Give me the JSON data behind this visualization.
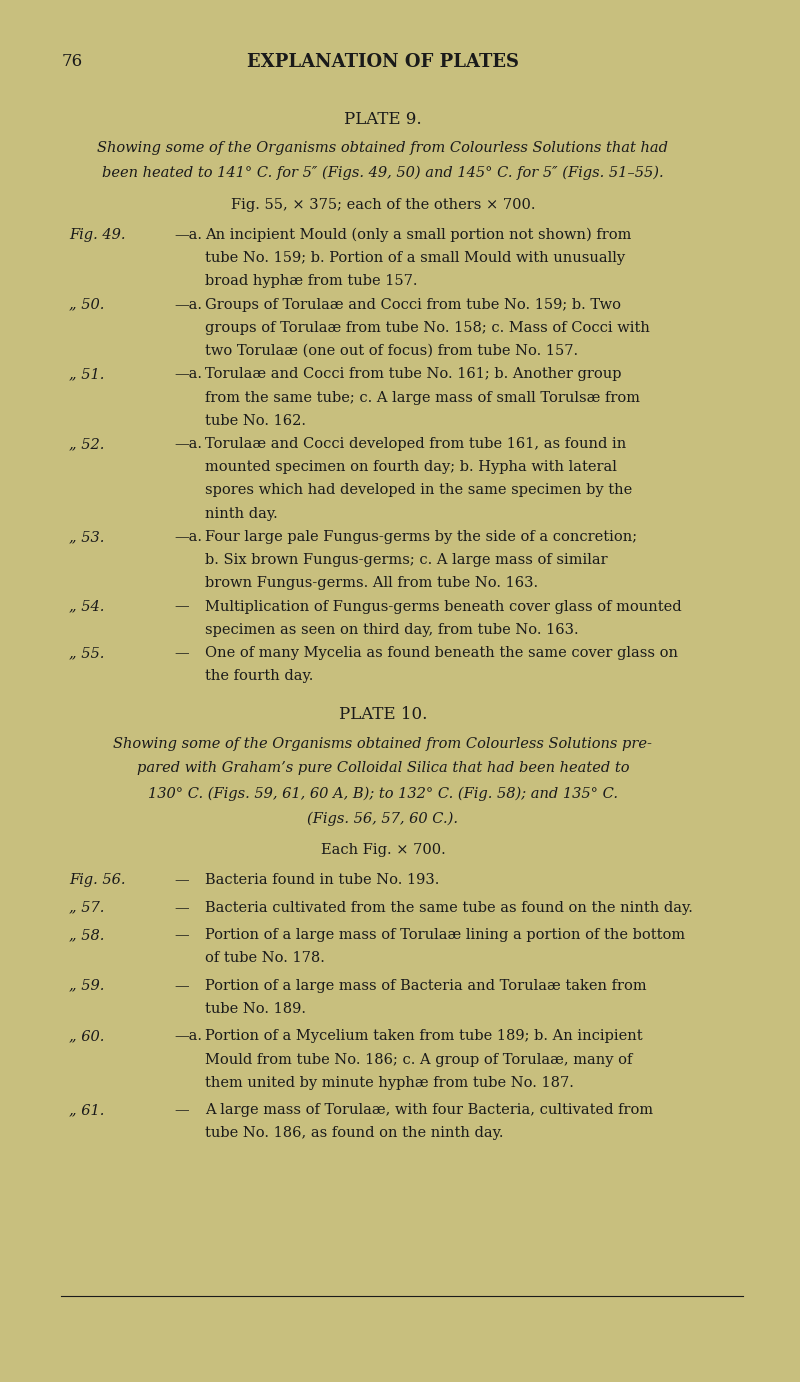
{
  "bg_color": "#c8bf7e",
  "text_color": "#1a1a1a",
  "page_number": "76",
  "header": "EXPLANATION OF PLATES",
  "plate9_title": "PLATE 9.",
  "plate9_italic_lines": [
    "Showing some of the Organisms obtained from Colourless Solutions that had",
    "been heated to 141° C. for 5″ (Figs. 49, 50) and 145° C. for 5″ (Figs. 51–55)."
  ],
  "plate9_scale": "Fig. 55, × 375; each of the others × 700.",
  "plate9_entries": [
    {
      "label": "Fig. 49.",
      "prefix": "—a.",
      "text_lines": [
        "An incipient Mould (only a small portion not shown) from",
        "tube No. 159; b. Portion of a small Mould with unusually",
        "broad hyphæ from tube 157."
      ]
    },
    {
      "label": "„ 50.",
      "prefix": "—a.",
      "text_lines": [
        "Groups of Torulaæ and Cocci from tube No. 159; b. Two",
        "groups of Torulaæ from tube No. 158; c. Mass of Cocci with",
        "two Torulaæ (one out of focus) from tube No. 157."
      ]
    },
    {
      "label": "„ 51.",
      "prefix": "—a.",
      "text_lines": [
        "Torulaæ and Cocci from tube No. 161; b. Another group",
        "from the same tube; c. A large mass of small Torulsæ from",
        "tube No. 162."
      ]
    },
    {
      "label": "„ 52.",
      "prefix": "—a.",
      "text_lines": [
        "Torulaæ and Cocci developed from tube 161, as found in",
        "mounted specimen on fourth day; b. Hypha with lateral",
        "spores which had developed in the same specimen by the",
        "ninth day."
      ]
    },
    {
      "label": "„ 53.",
      "prefix": "—a.",
      "text_lines": [
        "Four large pale Fungus-germs by the side of a concretion;",
        "b. Six brown Fungus-germs; c. A large mass of similar",
        "brown Fungus-germs. All from tube No. 163."
      ]
    },
    {
      "label": "„ 54.",
      "prefix": "—",
      "text_lines": [
        "Multiplication of Fungus-germs beneath cover glass of mounted",
        "specimen as seen on third day, from tube No. 163."
      ]
    },
    {
      "label": "„ 55.",
      "prefix": "—",
      "text_lines": [
        "One of many Mycelia as found beneath the same cover glass on",
        "the fourth day."
      ]
    }
  ],
  "plate10_title": "PLATE 10.",
  "plate10_italic_lines": [
    "Showing some of the Organisms obtained from Colourless Solutions pre-",
    "pared with Graham’s pure Colloidal Silica that had been heated to",
    "130° C. (Figs. 59, 61, 60 A, B); to 132° C. (Fig. 58); and 135° C.",
    "(Figs. 56, 57, 60 C.)."
  ],
  "plate10_scale": "Each Fig. × 700.",
  "plate10_entries": [
    {
      "label": "Fig. 56.",
      "prefix": "—",
      "text_lines": [
        "Bacteria found in tube No. 193."
      ]
    },
    {
      "label": "„ 57.",
      "prefix": "—",
      "text_lines": [
        "Bacteria cultivated from the same tube as found on the ninth day."
      ]
    },
    {
      "label": "„ 58.",
      "prefix": "—",
      "text_lines": [
        "Portion of a large mass of Torulaæ lining a portion of the bottom",
        "of tube No. 178."
      ]
    },
    {
      "label": "„ 59.",
      "prefix": "—",
      "text_lines": [
        "Portion of a large mass of Bacteria and Torulaæ taken from",
        "tube No. 189."
      ]
    },
    {
      "label": "„ 60.",
      "prefix": "—a.",
      "text_lines": [
        "Portion of a Mycelium taken from tube 189; b. An incipient",
        "Mould from tube No. 186; c. A group of Torulaæ, many of",
        "them united by minute hyphæ from tube No. 187."
      ]
    },
    {
      "label": "„ 61.",
      "prefix": "—",
      "text_lines": [
        "A large mass of Torulaæ, with four Bacteria, cultivated from",
        "tube No. 186, as found on the ninth day."
      ]
    }
  ]
}
